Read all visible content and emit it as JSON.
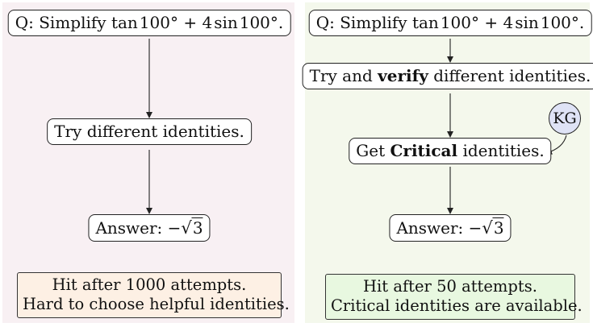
{
  "left": {
    "question": {
      "prefix": "Q: Simplify",
      "expr_func1": "tan",
      "expr_angle1": "100°",
      "expr_op": "+",
      "expr_coef": "4",
      "expr_func2": "sin",
      "expr_angle2": "100°",
      "suffix": "."
    },
    "step": "Try different identities.",
    "answer": {
      "label": "Answer:",
      "minus": "−",
      "radicand": "3"
    },
    "note": {
      "line1": "Hit after 1000 attempts.",
      "line2": "Hard to choose helpful identities."
    }
  },
  "right": {
    "question": {
      "prefix": "Q: Simplify",
      "expr_func1": "tan",
      "expr_angle1": "100°",
      "expr_op": "+",
      "expr_coef": "4",
      "expr_func2": "sin",
      "expr_angle2": "100°",
      "suffix": "."
    },
    "step1": {
      "before": "Try and",
      "bold": "verify",
      "after": "different identities."
    },
    "step2": {
      "before": "Get",
      "bold": "Critical",
      "after": "identities."
    },
    "kg": "KG",
    "answer": {
      "label": "Answer:",
      "minus": "−",
      "radicand": "3"
    },
    "note": {
      "line1": "Hit after 50 attempts.",
      "line2": "Critical identities are available."
    }
  }
}
